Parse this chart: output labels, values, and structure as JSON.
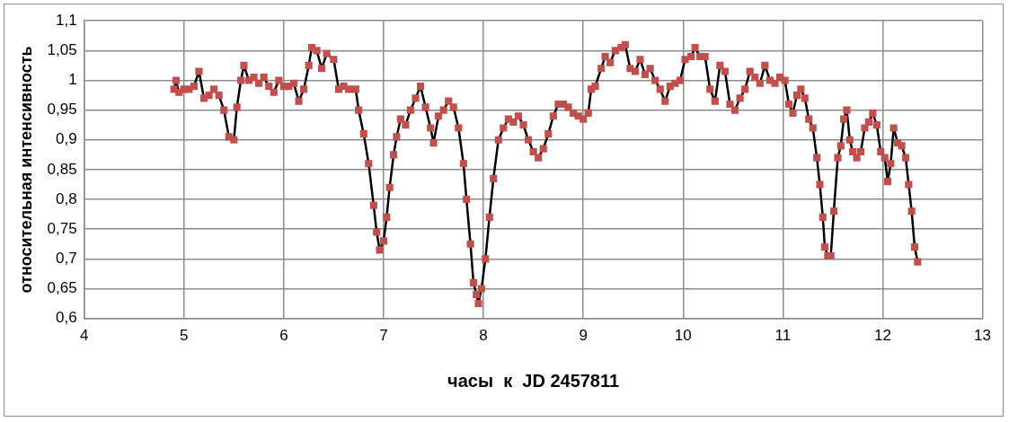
{
  "chart_data": {
    "type": "line",
    "xlabel": "часы  к  JD 2457811",
    "ylabel": "относительная интенсивность",
    "marker": "square",
    "line_style": "solid",
    "grid": true,
    "legend": false,
    "xlim": [
      4,
      13
    ],
    "xticks": [
      4,
      5,
      6,
      7,
      8,
      9,
      10,
      11,
      12,
      13
    ],
    "ylim": [
      0.6,
      1.1
    ],
    "yticks": [
      {
        "value": 0.6,
        "label": "0,6"
      },
      {
        "value": 0.65,
        "label": "0,65"
      },
      {
        "value": 0.7,
        "label": "0,7"
      },
      {
        "value": 0.75,
        "label": "0,75"
      },
      {
        "value": 0.8,
        "label": "0,8"
      },
      {
        "value": 0.85,
        "label": "0,85"
      },
      {
        "value": 0.9,
        "label": "0,9"
      },
      {
        "value": 0.95,
        "label": "0,95"
      },
      {
        "value": 1,
        "label": "1"
      },
      {
        "value": 1.05,
        "label": "1,05"
      },
      {
        "value": 1.1,
        "label": "1,1"
      }
    ],
    "series": [
      {
        "color": "#c0504d",
        "x": [
          4.9,
          4.92,
          4.95,
          5.0,
          5.05,
          5.1,
          5.15,
          5.2,
          5.25,
          5.3,
          5.35,
          5.4,
          5.45,
          5.5,
          5.53,
          5.57,
          5.6,
          5.65,
          5.7,
          5.75,
          5.8,
          5.85,
          5.9,
          5.95,
          6.0,
          6.05,
          6.1,
          6.15,
          6.2,
          6.25,
          6.28,
          6.33,
          6.38,
          6.43,
          6.5,
          6.55,
          6.6,
          6.65,
          6.72,
          6.75,
          6.8,
          6.85,
          6.9,
          6.93,
          6.96,
          7.0,
          7.03,
          7.06,
          7.1,
          7.13,
          7.17,
          7.22,
          7.27,
          7.32,
          7.37,
          7.42,
          7.47,
          7.5,
          7.55,
          7.6,
          7.65,
          7.7,
          7.75,
          7.8,
          7.83,
          7.87,
          7.9,
          7.93,
          7.95,
          7.98,
          8.02,
          8.06,
          8.1,
          8.15,
          8.2,
          8.25,
          8.3,
          8.35,
          8.4,
          8.45,
          8.5,
          8.55,
          8.6,
          8.65,
          8.7,
          8.75,
          8.8,
          8.85,
          8.9,
          8.95,
          9.0,
          9.05,
          9.08,
          9.12,
          9.18,
          9.22,
          9.27,
          9.32,
          9.38,
          9.42,
          9.47,
          9.52,
          9.57,
          9.62,
          9.67,
          9.72,
          9.77,
          9.82,
          9.87,
          9.92,
          9.97,
          10.02,
          10.08,
          10.12,
          10.17,
          10.22,
          10.27,
          10.32,
          10.37,
          10.42,
          10.47,
          10.52,
          10.57,
          10.62,
          10.67,
          10.72,
          10.77,
          10.82,
          10.87,
          10.92,
          10.97,
          11.02,
          11.06,
          11.1,
          11.14,
          11.18,
          11.22,
          11.26,
          11.3,
          11.34,
          11.37,
          11.4,
          11.42,
          11.45,
          11.48,
          11.51,
          11.55,
          11.58,
          11.61,
          11.64,
          11.67,
          11.7,
          11.74,
          11.78,
          11.82,
          11.86,
          11.9,
          11.94,
          11.98,
          12.02,
          12.05,
          12.08,
          12.11,
          12.15,
          12.19,
          12.23,
          12.26,
          12.29,
          12.32,
          12.35
        ],
        "values": [
          0.985,
          1.0,
          0.98,
          0.985,
          0.985,
          0.99,
          1.015,
          0.97,
          0.975,
          0.985,
          0.975,
          0.95,
          0.905,
          0.9,
          0.955,
          1.0,
          1.025,
          1.0,
          1.005,
          0.995,
          1.005,
          0.99,
          0.98,
          1.0,
          0.99,
          0.99,
          0.995,
          0.965,
          0.985,
          1.025,
          1.055,
          1.05,
          1.02,
          1.045,
          1.035,
          0.985,
          0.99,
          0.985,
          0.985,
          0.95,
          0.91,
          0.86,
          0.79,
          0.745,
          0.715,
          0.73,
          0.77,
          0.82,
          0.875,
          0.905,
          0.935,
          0.925,
          0.95,
          0.97,
          0.99,
          0.955,
          0.92,
          0.895,
          0.94,
          0.95,
          0.965,
          0.955,
          0.92,
          0.86,
          0.8,
          0.725,
          0.66,
          0.64,
          0.625,
          0.65,
          0.7,
          0.77,
          0.835,
          0.9,
          0.92,
          0.935,
          0.93,
          0.94,
          0.925,
          0.9,
          0.88,
          0.87,
          0.885,
          0.91,
          0.94,
          0.96,
          0.96,
          0.955,
          0.945,
          0.94,
          0.935,
          0.945,
          0.985,
          0.99,
          1.02,
          1.04,
          1.03,
          1.05,
          1.055,
          1.06,
          1.02,
          1.015,
          1.035,
          1.01,
          1.02,
          1.0,
          0.985,
          0.965,
          0.99,
          0.995,
          1.0,
          1.035,
          1.04,
          1.055,
          1.04,
          1.04,
          0.985,
          0.965,
          1.025,
          1.015,
          0.96,
          0.95,
          0.97,
          0.985,
          1.015,
          1.005,
          0.995,
          1.025,
          1.0,
          0.995,
          1.005,
          1.0,
          0.96,
          0.945,
          0.975,
          0.985,
          0.97,
          0.935,
          0.92,
          0.87,
          0.825,
          0.77,
          0.72,
          0.705,
          0.705,
          0.78,
          0.87,
          0.89,
          0.935,
          0.95,
          0.9,
          0.88,
          0.87,
          0.88,
          0.92,
          0.93,
          0.945,
          0.925,
          0.88,
          0.87,
          0.83,
          0.86,
          0.92,
          0.895,
          0.89,
          0.87,
          0.825,
          0.78,
          0.72,
          0.695
        ]
      }
    ]
  }
}
